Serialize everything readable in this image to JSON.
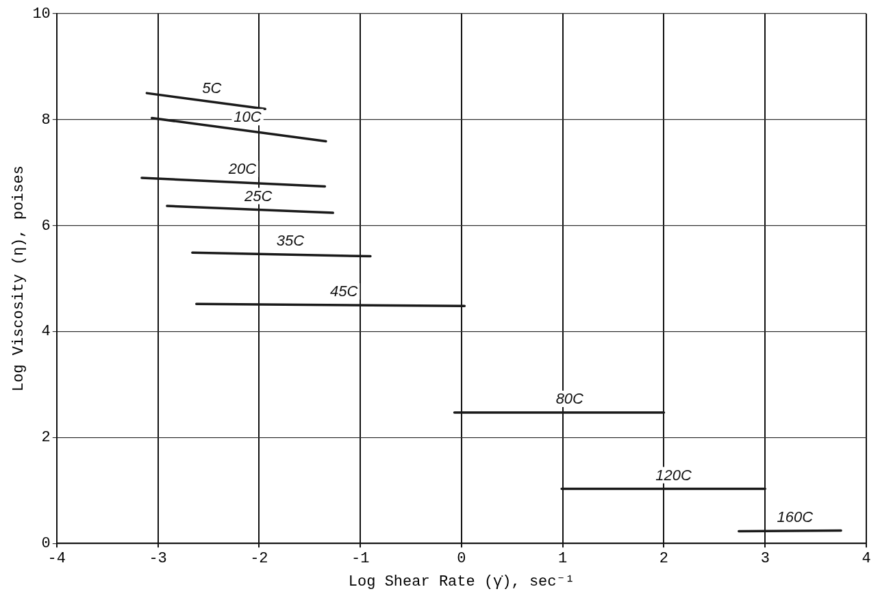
{
  "chart_data": {
    "type": "line",
    "xlabel": "Log Shear Rate (γ̇), sec⁻¹",
    "ylabel": "Log Viscosity (η), poises",
    "xlim": [
      -4,
      4
    ],
    "xticks": [
      -4,
      -3,
      -2,
      -1,
      0,
      1,
      2,
      3,
      4
    ],
    "ylim": [
      0,
      10
    ],
    "yticks": [
      0,
      2,
      4,
      6,
      8,
      10
    ],
    "grid": true,
    "legend": false,
    "marker": "none",
    "line_style": "solid",
    "series": [
      {
        "name": "5C",
        "color": "#1a1a1a",
        "x": [
          -3.11,
          -1.94
        ],
        "values": [
          8.5,
          8.2
        ]
      },
      {
        "name": "10C",
        "color": "#1a1a1a",
        "x": [
          -3.06,
          -1.34
        ],
        "values": [
          8.03,
          7.59
        ]
      },
      {
        "name": "20C",
        "color": "#1a1a1a",
        "x": [
          -3.16,
          -1.35
        ],
        "values": [
          6.9,
          6.74
        ]
      },
      {
        "name": "25C",
        "color": "#1a1a1a",
        "x": [
          -2.91,
          -1.27
        ],
        "values": [
          6.37,
          6.24
        ]
      },
      {
        "name": "35C",
        "color": "#1a1a1a",
        "x": [
          -2.66,
          -0.9
        ],
        "values": [
          5.49,
          5.42
        ]
      },
      {
        "name": "45C",
        "color": "#1a1a1a",
        "x": [
          -2.62,
          0.03
        ],
        "values": [
          4.52,
          4.48
        ]
      },
      {
        "name": "80C",
        "color": "#1a1a1a",
        "x": [
          -0.07,
          2.0
        ],
        "values": [
          2.47,
          2.47
        ]
      },
      {
        "name": "120C",
        "color": "#1a1a1a",
        "x": [
          0.99,
          3.0
        ],
        "values": [
          1.03,
          1.03
        ]
      },
      {
        "name": "160C",
        "color": "#1a1a1a",
        "x": [
          2.74,
          3.75
        ],
        "values": [
          0.23,
          0.24
        ]
      }
    ]
  }
}
